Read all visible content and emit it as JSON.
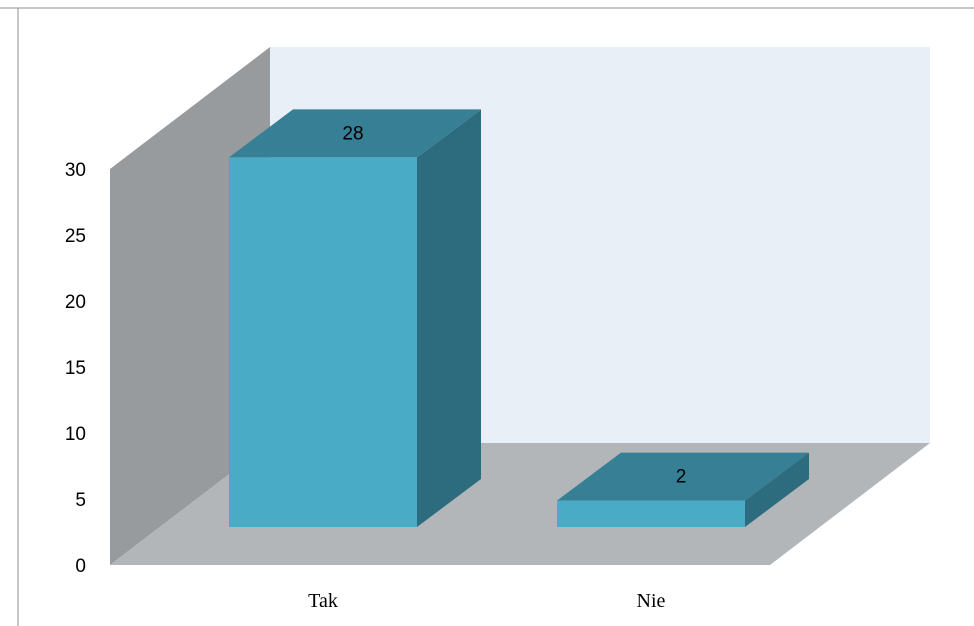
{
  "chart_data": {
    "type": "bar",
    "style": "3d-column",
    "categories": [
      "Tak",
      "Nie"
    ],
    "values": [
      28,
      2
    ],
    "data_labels": [
      "28",
      "2"
    ],
    "title": "",
    "xlabel": "",
    "ylabel": "",
    "ylim": [
      0,
      30
    ],
    "yticks": [
      "0",
      "5",
      "10",
      "15",
      "20",
      "25",
      "30"
    ],
    "grid": false,
    "legend": "none",
    "colors": {
      "bar_front": "#4aabc6",
      "bar_top": "#367f94",
      "bar_side": "#2d6c7e",
      "back_wall": "#e9eff6",
      "side_wall": "#979b9e",
      "floor": "#b3b6b8"
    }
  }
}
